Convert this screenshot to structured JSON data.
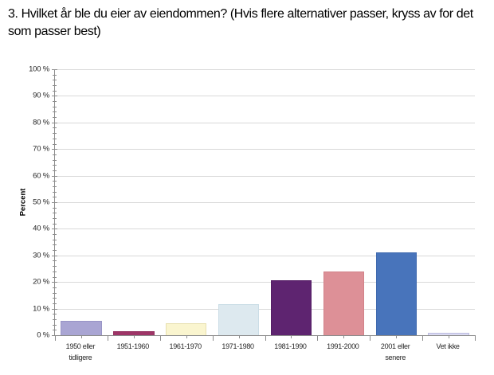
{
  "title": "3. Hvilket år ble du eier av eiendommen? (Hvis flere alternativer passer, kryss av for det som passer best)",
  "chart_data": {
    "type": "bar",
    "title": "",
    "xlabel": "",
    "ylabel": "Percent",
    "ylim": [
      0,
      100
    ],
    "grid": true,
    "legend": "none",
    "y_major_step": 10,
    "y_minor_step": 2,
    "y_tick_labels": [
      "0 %",
      "10 %",
      "20 %",
      "30 %",
      "40 %",
      "50 %",
      "60 %",
      "70 %",
      "80 %",
      "90 %",
      "100 %"
    ],
    "categories": [
      "1950 eller tidligere",
      "1951-1960",
      "1961-1970",
      "1971-1980",
      "1981-1990",
      "1991-2000",
      "2001 eller senere",
      "Vet ikke"
    ],
    "values": [
      5.3,
      1.5,
      4.6,
      11.7,
      20.8,
      24.0,
      31.2,
      0.9
    ],
    "bar_colors": [
      "#a9a5d3",
      "#9e3567",
      "#faf5cf",
      "#dde9ef",
      "#5e2470",
      "#dd9097",
      "#4874bb",
      "#dadaf2"
    ],
    "bar_border_colors": [
      "#9894c6",
      "#93305f",
      "#e8e0b0",
      "#cbdde6",
      "#551f66",
      "#d28289",
      "#3f69ae",
      "#bcbce0"
    ]
  },
  "colors": {
    "background": "#ffffff",
    "axis": "#8c8c8c",
    "gridline": "#d9d9d9",
    "title_text": "#000000",
    "tick_text": "#262626"
  }
}
